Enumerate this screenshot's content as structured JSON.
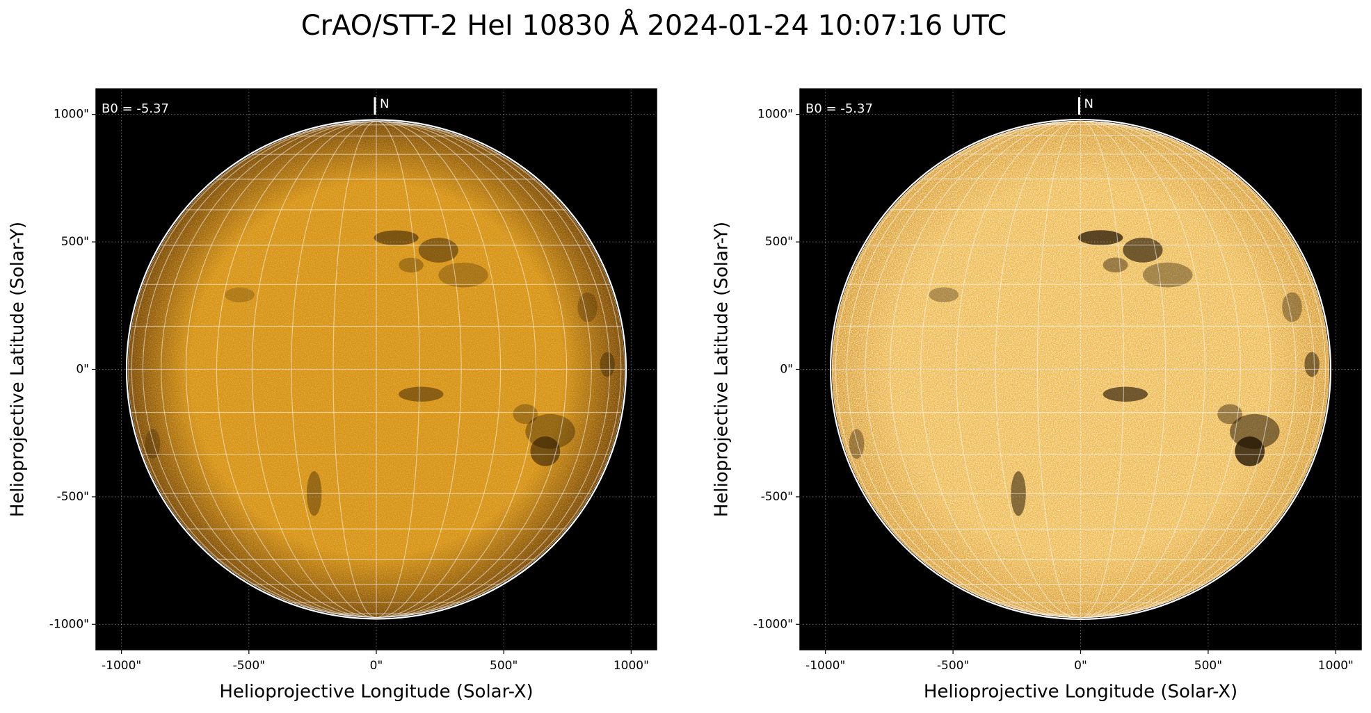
{
  "figure_title": "CrAO/STT-2 HeI 10830 Å 2024-01-24 10:07:16 UTC",
  "chart_data": [
    {
      "type": "image",
      "xlabel": "Helioprojective Longitude (Solar-X)",
      "ylabel": "Helioprojective Latitude (Solar-Y)",
      "xlim": [
        -1100,
        1100
      ],
      "ylim": [
        -1100,
        1100
      ],
      "xticks": [
        {
          "value": -1000,
          "label": "-1000\""
        },
        {
          "value": -500,
          "label": "-500\""
        },
        {
          "value": 0,
          "label": "0\""
        },
        {
          "value": 500,
          "label": "500\""
        },
        {
          "value": 1000,
          "label": "1000\""
        }
      ],
      "yticks": [
        {
          "value": -1000,
          "label": "-1000\""
        },
        {
          "value": -500,
          "label": "-500\""
        },
        {
          "value": 0,
          "label": "0\""
        },
        {
          "value": 500,
          "label": "500\""
        },
        {
          "value": 1000,
          "label": "1000\""
        }
      ],
      "annotation": "B0 = -5.37",
      "north_label": "N",
      "disk_radius": 975,
      "colors": {
        "center": "#d7920f",
        "limb": "#7a4800",
        "speckle": 0.25
      },
      "grid": true
    },
    {
      "type": "image",
      "xlabel": "Helioprojective Longitude (Solar-X)",
      "ylabel": "Helioprojective Latitude (Solar-Y)",
      "xlim": [
        -1100,
        1100
      ],
      "ylim": [
        -1100,
        1100
      ],
      "xticks": [
        {
          "value": -1000,
          "label": "-1000\""
        },
        {
          "value": -500,
          "label": "-500\""
        },
        {
          "value": 0,
          "label": "0\""
        },
        {
          "value": 500,
          "label": "500\""
        },
        {
          "value": 1000,
          "label": "1000\""
        }
      ],
      "yticks": [
        {
          "value": -1000,
          "label": "-1000\""
        },
        {
          "value": -500,
          "label": "-500\""
        },
        {
          "value": 0,
          "label": "0\""
        },
        {
          "value": 500,
          "label": "500\""
        },
        {
          "value": 1000,
          "label": "1000\""
        }
      ],
      "annotation": "B0 = -5.37",
      "north_label": "N",
      "disk_radius": 975,
      "colors": {
        "center": "#eeb84a",
        "limb": "#d89a2a",
        "speckle": 0.7
      },
      "grid": true
    }
  ]
}
